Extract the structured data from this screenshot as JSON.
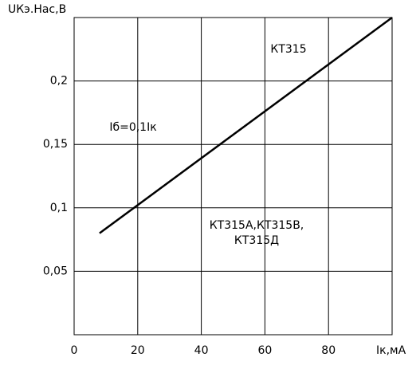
{
  "chart_data": {
    "type": "line",
    "y_label": "UКэ.Нас,В",
    "x_label": "Iк,мА",
    "annotations": [
      "КТ315",
      "Iб=0,1Iк",
      "КТ315А,КТ315В,",
      "КТ315Д"
    ],
    "series": [
      {
        "x": [
          8,
          100
        ],
        "values": [
          0.08,
          0.25
        ],
        "color": "#000000"
      }
    ],
    "xlim": [
      0,
      100
    ],
    "xticks": [
      0,
      20,
      40,
      60,
      80
    ],
    "ylim": [
      0,
      0.25
    ],
    "yticks": [
      {
        "value": 0.05,
        "label": "0,05"
      },
      {
        "value": 0.1,
        "label": "0,1"
      },
      {
        "value": 0.15,
        "label": "0,15"
      },
      {
        "value": 0.2,
        "label": "0,2"
      }
    ],
    "grid": true
  }
}
